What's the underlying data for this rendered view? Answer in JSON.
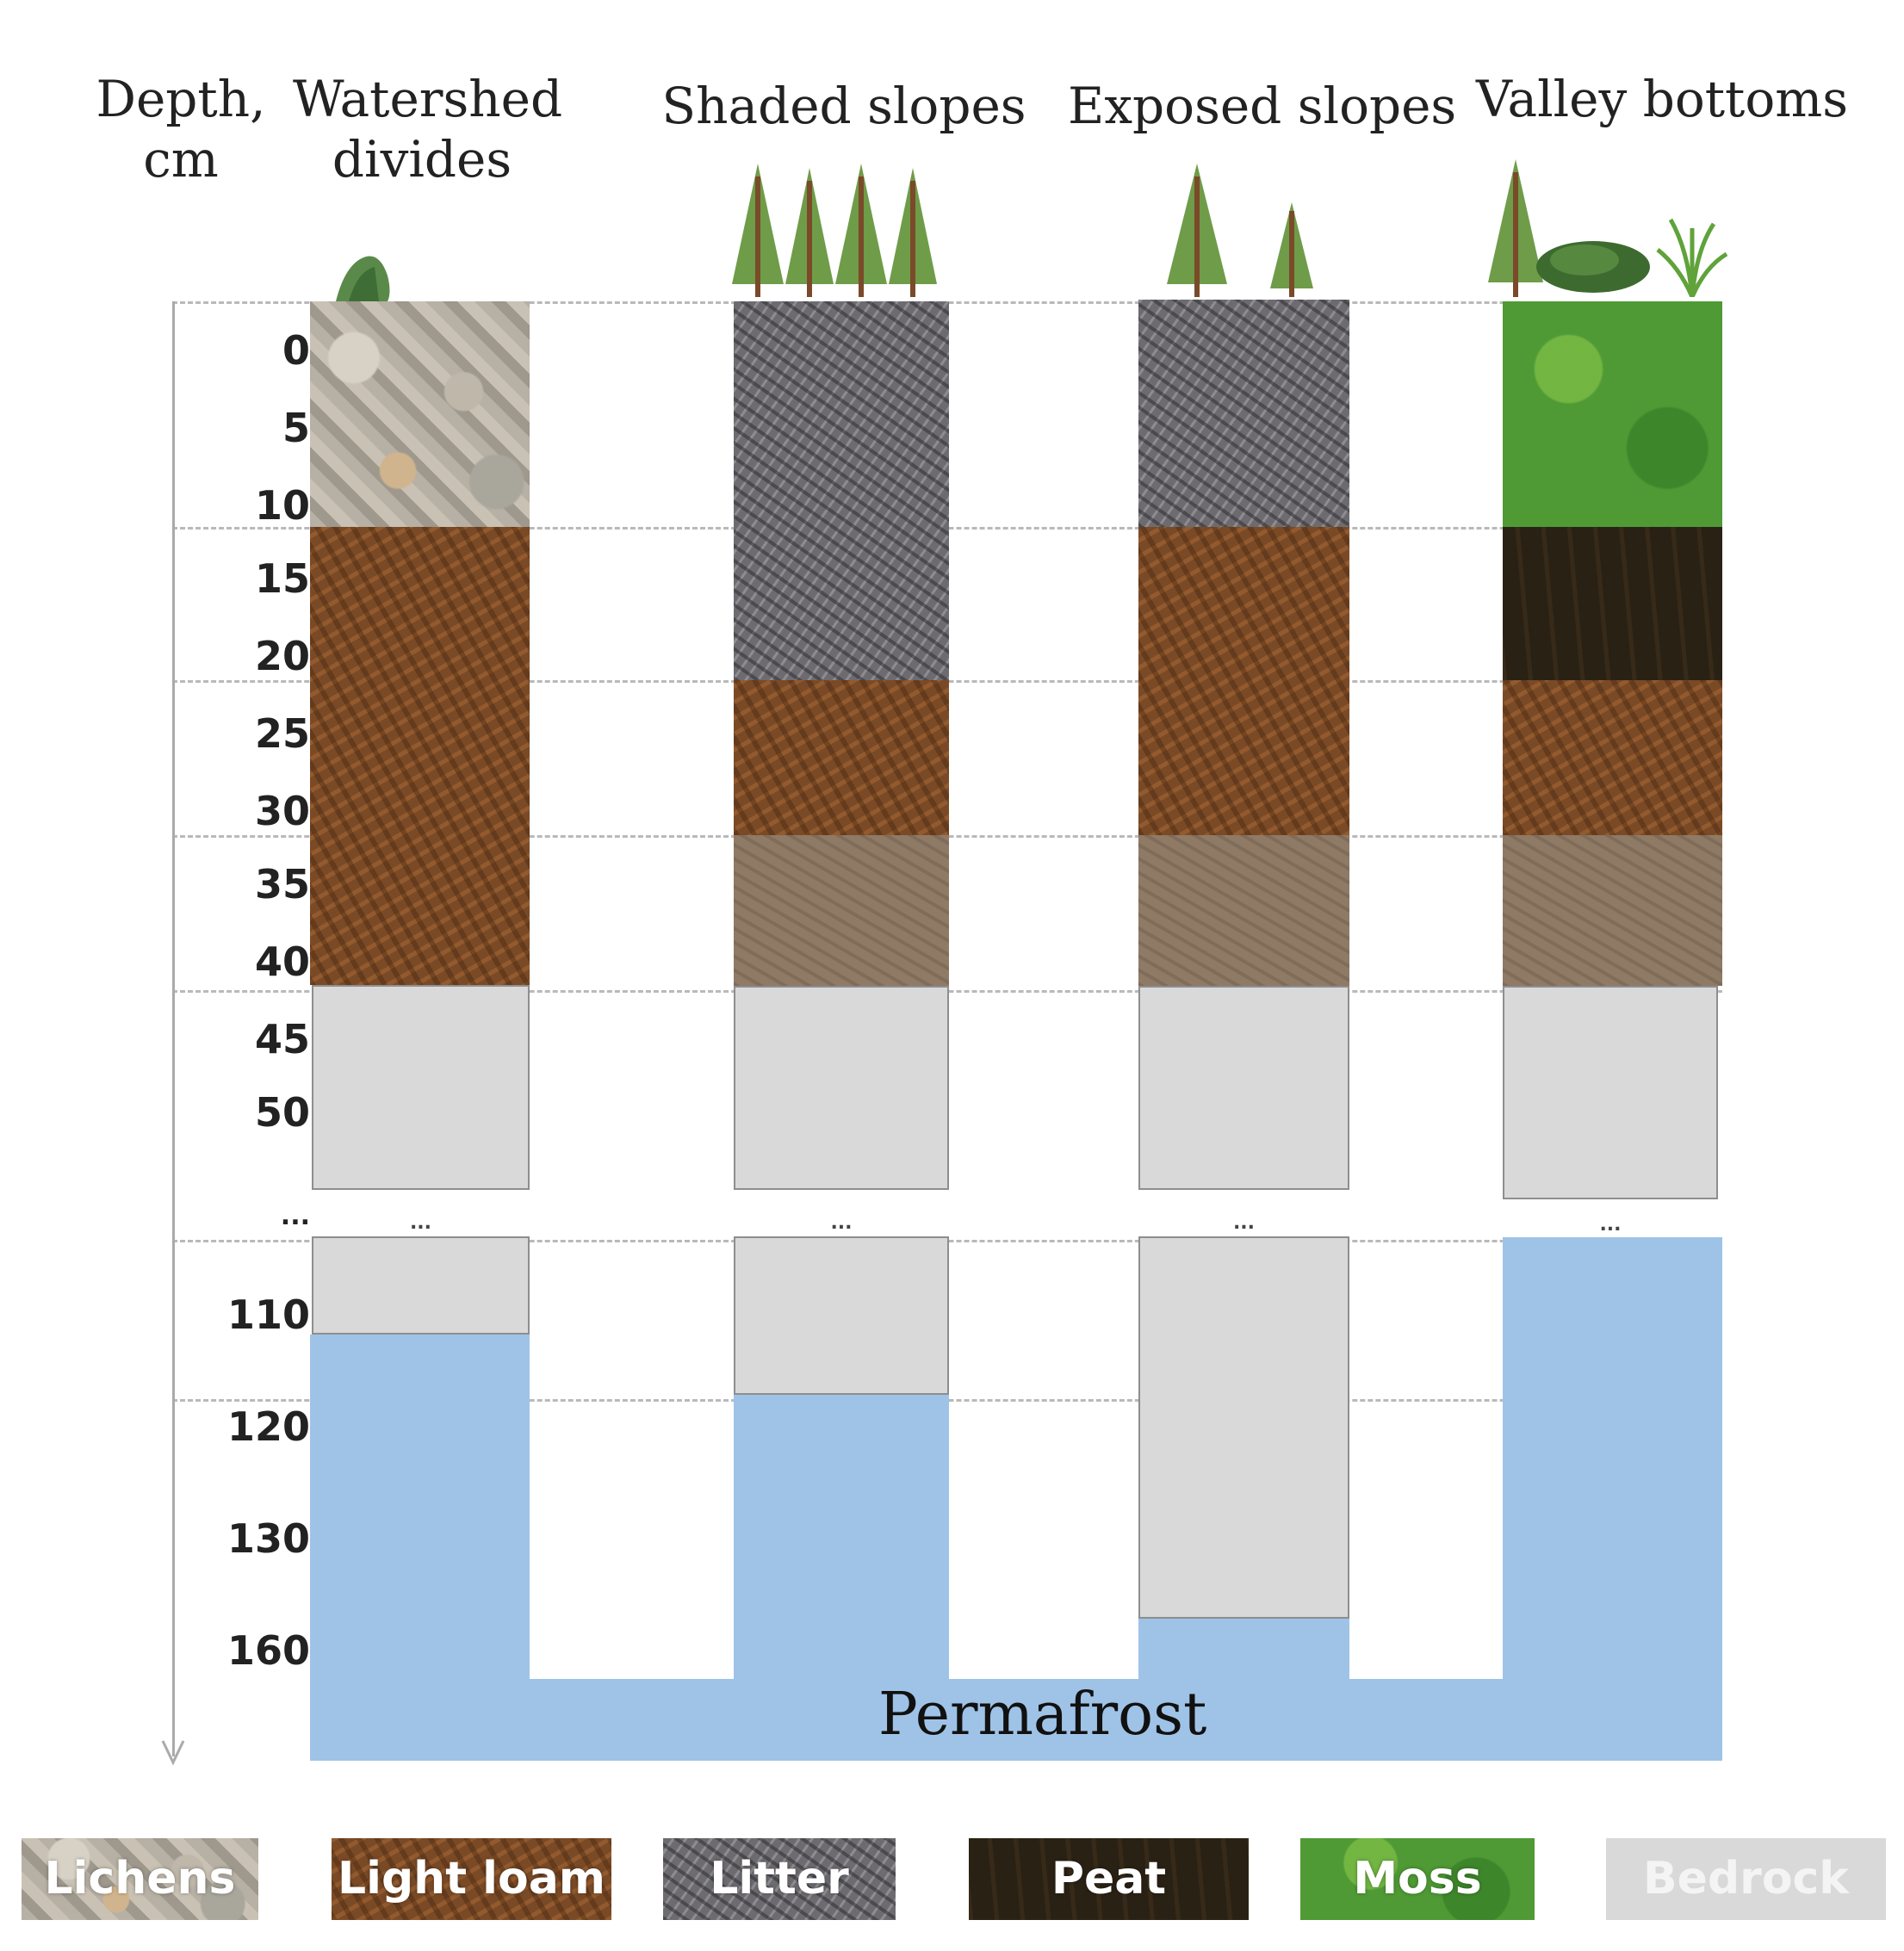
{
  "header": {
    "depth_label_line1": "Depth,",
    "depth_label_line2": "cm",
    "columns": [
      {
        "line1": "Watershed",
        "line2": "divides"
      },
      {
        "line1": "Shaded slopes",
        "line2": ""
      },
      {
        "line1": "Exposed slopes",
        "line2": ""
      },
      {
        "line1": "Valley bottoms",
        "line2": ""
      }
    ]
  },
  "depth_ticks": [
    "0",
    "5",
    "10",
    "15",
    "20",
    "25",
    "30",
    "35",
    "40",
    "45",
    "50",
    "...",
    "110",
    "120",
    "130",
    "160"
  ],
  "ellipsis": "...",
  "permafrost_label": "Permafrost",
  "legend": {
    "lichens": "Lichens",
    "light_loam": "Light loam",
    "litter": "Litter",
    "peat": "Peat",
    "moss": "Moss",
    "bedrock": "Bedrock"
  },
  "colors": {
    "permafrost": "#9fc3e7",
    "bedrock": "#d9d9d9",
    "light_loam": "#7a4a26",
    "litter": "#6d6b70",
    "peat": "#2a2115",
    "moss": "#4f9a35",
    "lichens": "#b7b0a4"
  },
  "icons": [
    "shrub-icon",
    "larch-tree-icon",
    "bush-icon",
    "grass-icon"
  ]
}
